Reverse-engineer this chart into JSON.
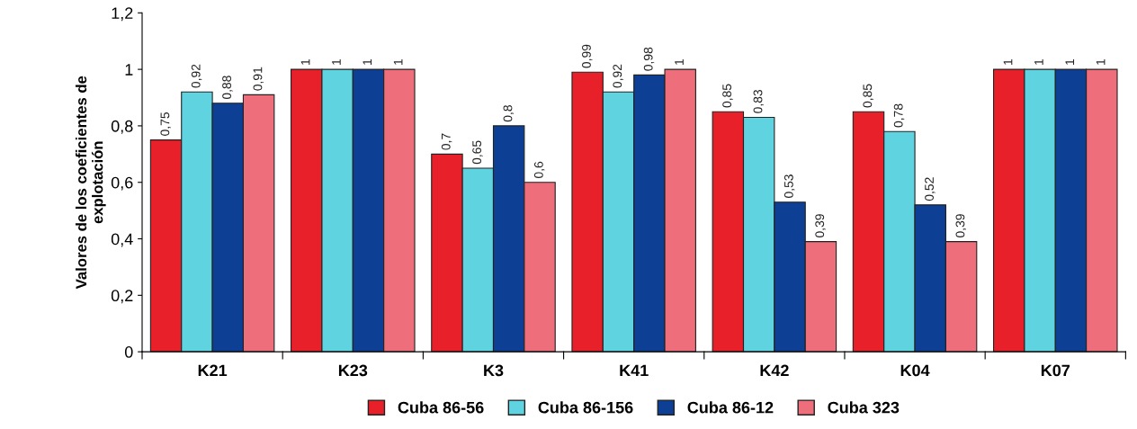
{
  "chart_data": {
    "type": "bar",
    "ylabel": "Valores de los coeficientes de\nexplotación",
    "categories": [
      "K21",
      "K23",
      "K3",
      "K41",
      "K42",
      "K04",
      "K07"
    ],
    "series": [
      {
        "name": "Cuba 86-56",
        "color": "#e8202a",
        "values": [
          0.75,
          1,
          0.7,
          0.99,
          0.85,
          0.85,
          1
        ],
        "value_labels": [
          "0,75",
          "1",
          "0,7",
          "0,99",
          "0,85",
          "0,85",
          "1"
        ]
      },
      {
        "name": "Cuba 86-156",
        "color": "#5fd3e0",
        "values": [
          0.92,
          1,
          0.65,
          0.92,
          0.83,
          0.78,
          1
        ],
        "value_labels": [
          "0,92",
          "1",
          "0,65",
          "0,92",
          "0,83",
          "0,78",
          "1"
        ]
      },
      {
        "name": "Cuba 86-12",
        "color": "#0d3f94",
        "values": [
          0.88,
          1,
          0.8,
          0.98,
          0.53,
          0.52,
          1
        ],
        "value_labels": [
          "0,88",
          "1",
          "0,8",
          "0,98",
          "0,53",
          "0,52",
          "1"
        ]
      },
      {
        "name": "Cuba 323",
        "color": "#ee6f7b",
        "values": [
          0.91,
          1,
          0.6,
          1,
          0.39,
          0.39,
          1
        ],
        "value_labels": [
          "0,91",
          "1",
          "0,6",
          "1",
          "0,39",
          "0,39",
          "1"
        ]
      }
    ],
    "ylim": [
      0,
      1.2
    ],
    "yticks": [
      0,
      {
        "value": 0.2,
        "label": "0,2"
      },
      {
        "value": 0.4,
        "label": "0,4"
      },
      {
        "value": 0.6,
        "label": "0,6"
      },
      {
        "value": 0.8,
        "label": "0,8"
      },
      1,
      {
        "value": 1.2,
        "label": "1,2"
      }
    ],
    "grid": false,
    "legend": "bottom"
  }
}
